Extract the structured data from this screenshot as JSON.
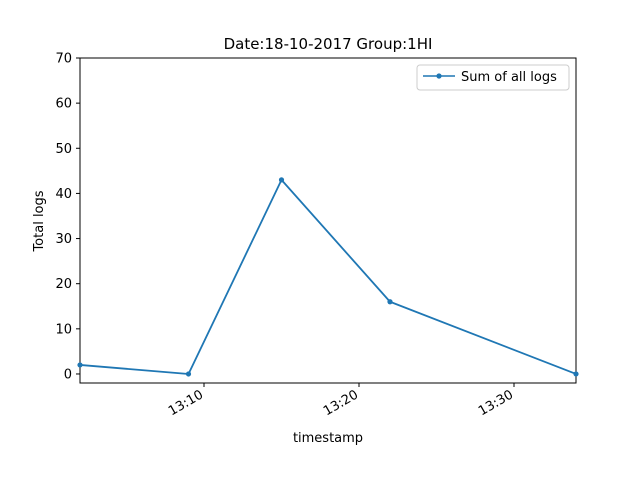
{
  "chart_data": {
    "type": "line",
    "title": "Date:18-10-2017  Group:1HI",
    "xlabel": "timestamp",
    "ylabel": "Total logs",
    "x_type": "time",
    "x": [
      "13:02",
      "13:09",
      "13:15",
      "13:22",
      "13:34"
    ],
    "xlim": [
      "13:02",
      "13:34"
    ],
    "ylim": [
      -2,
      70
    ],
    "x_ticks": [
      "13:10",
      "13:20",
      "13:30"
    ],
    "y_ticks": [
      0,
      10,
      20,
      30,
      40,
      50,
      60,
      70
    ],
    "series": [
      {
        "name": "Sum of all logs",
        "values": [
          2,
          0,
          43,
          16,
          0
        ],
        "color": "#1f77b4",
        "marker": "circle"
      }
    ],
    "legend": {
      "position": "top-right"
    },
    "grid": false
  }
}
